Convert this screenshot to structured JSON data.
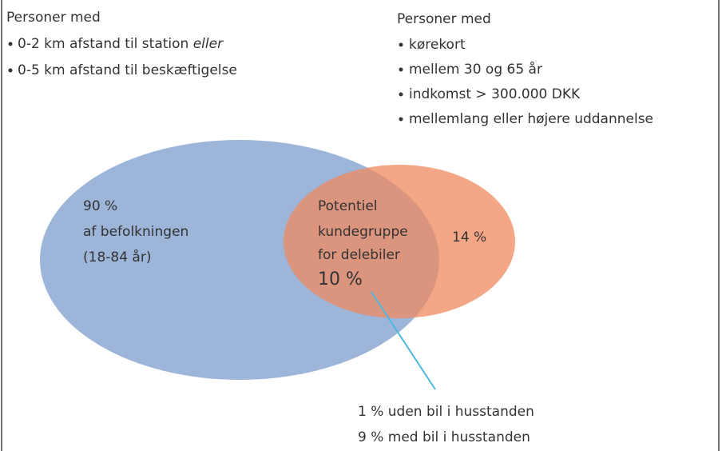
{
  "left_group": {
    "heading": "Personer med",
    "items": [
      "0-2 km afstand til station",
      "0-5 km afstand til beskæftigelse"
    ],
    "connector": "eller"
  },
  "right_group": {
    "heading": "Personer med",
    "items": [
      "kørekort",
      "mellem 30 og 65 år",
      "indkomst > 300.000 DKK",
      "mellemlang eller højere uddannelse"
    ]
  },
  "blue_circle": {
    "lines": [
      "90 %",
      "af befolkningen",
      "(18-84 år)"
    ]
  },
  "overlap": {
    "lines": [
      "Potentiel",
      "kundegruppe",
      "for delebiler"
    ],
    "share": "10 %"
  },
  "orange_circle": {
    "label": "14 %"
  },
  "callout": {
    "lines": [
      "1 % uden bil i husstanden",
      "9 % med bil i husstanden"
    ]
  }
}
